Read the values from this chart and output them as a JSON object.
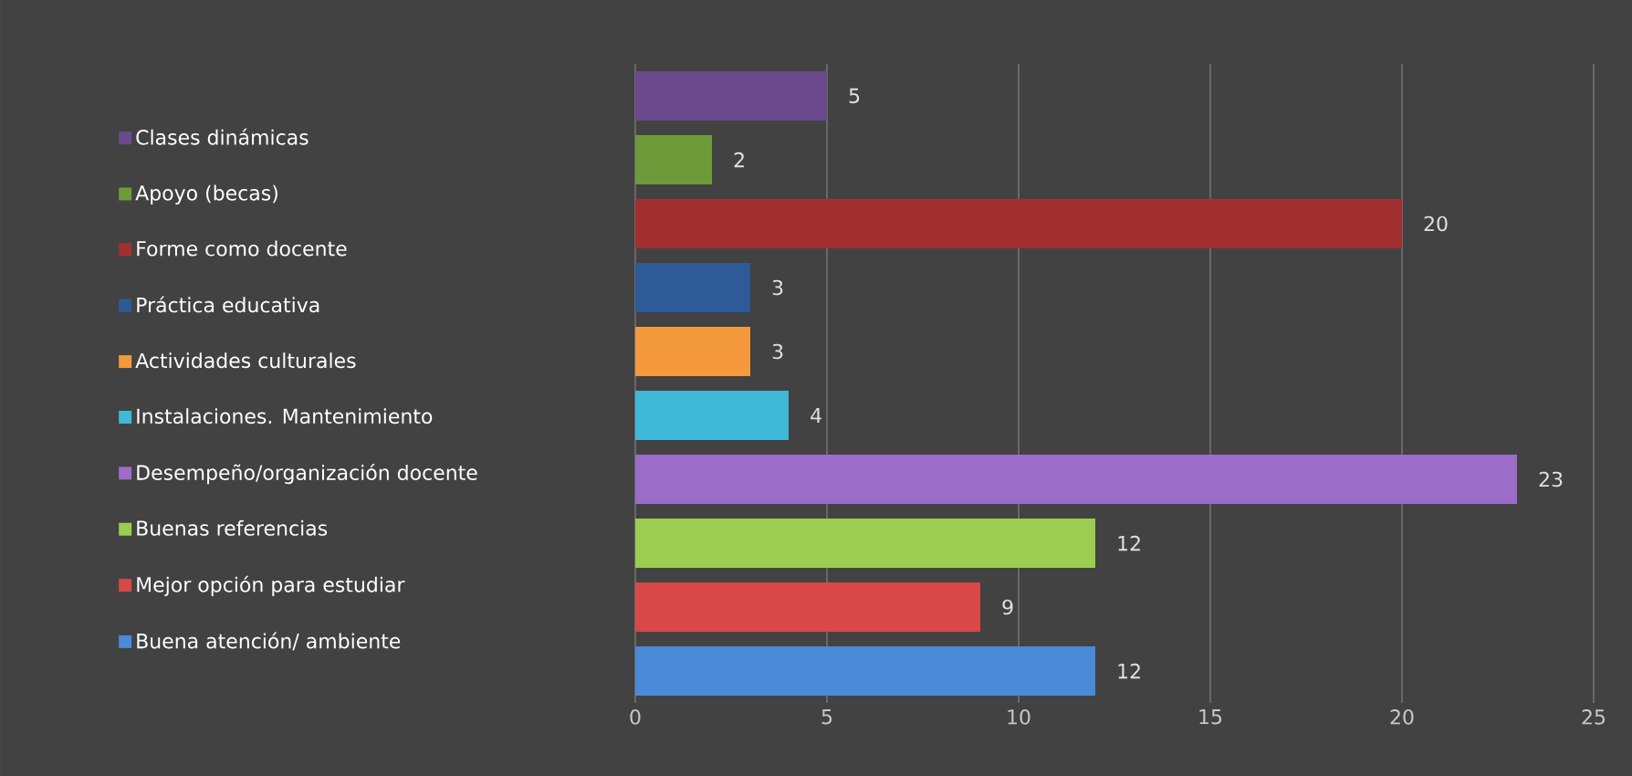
{
  "chart_data": {
    "type": "bar",
    "orientation": "horizontal",
    "categories": [
      null,
      null,
      null,
      null,
      null,
      null,
      null,
      null,
      null,
      null
    ],
    "series": [
      {
        "name": "Clases dinámicas",
        "color": "#6a4a8c",
        "values": [
          5,
          null,
          null,
          null,
          null,
          null,
          null,
          null,
          null,
          null
        ]
      },
      {
        "name": "Apoyo (becas)",
        "color": "#6e9a3a",
        "values": [
          null,
          2,
          null,
          null,
          null,
          null,
          null,
          null,
          null,
          null
        ]
      },
      {
        "name": "Forme como docente",
        "color": "#a33030",
        "values": [
          null,
          null,
          20,
          null,
          null,
          null,
          null,
          null,
          null,
          null
        ]
      },
      {
        "name": "Práctica educativa",
        "color": "#2e5a98",
        "values": [
          null,
          null,
          null,
          3,
          null,
          null,
          null,
          null,
          null,
          null
        ]
      },
      {
        "name": "Actividades culturales",
        "color": "#f59a3c",
        "values": [
          null,
          null,
          null,
          null,
          3,
          null,
          null,
          null,
          null,
          null
        ]
      },
      {
        "name": "Instalaciones. Mantenimiento",
        "color": "#40b8d8",
        "values": [
          null,
          null,
          null,
          null,
          null,
          4,
          null,
          null,
          null,
          null
        ]
      },
      {
        "name": "Desempeño/organización docente",
        "color": "#9b6cc8",
        "values": [
          null,
          null,
          null,
          null,
          null,
          null,
          23,
          null,
          null,
          null
        ]
      },
      {
        "name": "Buenas referencias",
        "color": "#9ccc50",
        "values": [
          null,
          null,
          null,
          null,
          null,
          null,
          null,
          12,
          null,
          null
        ]
      },
      {
        "name": "Mejor opción para estudiar",
        "color": "#d84848",
        "values": [
          null,
          null,
          null,
          null,
          null,
          null,
          null,
          null,
          9,
          null
        ]
      },
      {
        "name": "Buena atención/ ambiente",
        "color": "#4a8ad8",
        "values": [
          null,
          null,
          null,
          null,
          null,
          null,
          null,
          null,
          null,
          12
        ]
      }
    ],
    "xlim": [
      0,
      25
    ],
    "xticks": [
      0,
      5,
      10,
      15,
      20,
      25
    ],
    "grid": "x",
    "legend": "left",
    "data_labels": true,
    "tick_labels": "x"
  }
}
